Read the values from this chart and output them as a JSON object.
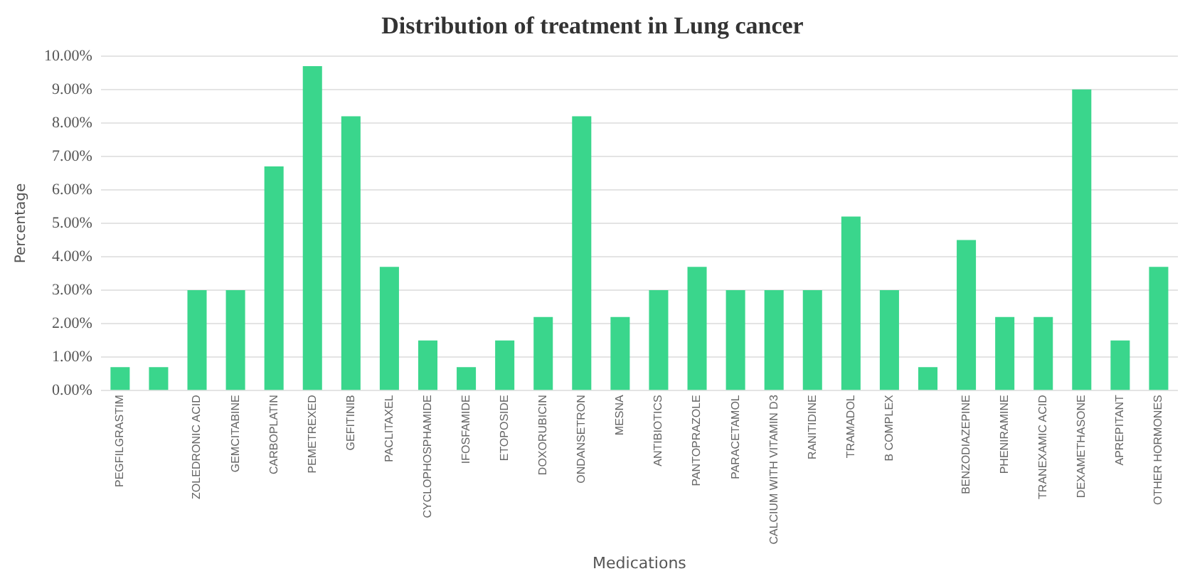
{
  "chart_data": {
    "type": "bar",
    "title": "Distribution of treatment in Lung cancer",
    "xlabel": "Medications",
    "ylabel": "Percentage",
    "categories": [
      "PEGFILGRASTIM",
      null,
      "ZOLEDRONIC ACID",
      "GEMCITABINE",
      "CARBOPLATIN",
      "PEMETREXED",
      "GEFITINIB",
      "PACLITAXEL",
      "CYCLOPHOSPHAMIDE",
      "IFOSFAMIDE",
      "ETOPOSIDE",
      "DOXORUBICIN",
      "ONDANSETRON",
      "MESNA",
      "ANTIBIOTICS",
      "PANTOPRAZOLE",
      "PARACETAMOL",
      "CALCIUM WITH VITAMIN D3",
      "RANITIDINE",
      "TRAMADOL",
      "B COMPLEX",
      null,
      "BENZODIAZEPINE",
      "PHENIRAMINE",
      "TRANEXAMIC ACID",
      "DEXAMETHASONE",
      "APREPITANT",
      "OTHER HORMONES"
    ],
    "values": [
      0.7,
      0.7,
      3.0,
      3.0,
      6.7,
      9.7,
      8.2,
      3.7,
      1.5,
      0.7,
      1.5,
      2.2,
      8.2,
      2.2,
      3.0,
      3.7,
      3.0,
      3.0,
      3.0,
      5.2,
      3.0,
      0.7,
      4.5,
      2.2,
      2.2,
      9.0,
      1.5,
      3.7
    ],
    "color": "#3ad68c",
    "ylim": [
      0,
      10
    ],
    "yticks": [
      {
        "value": 0,
        "label": "0.00%"
      },
      {
        "value": 1,
        "label": "1.00%"
      },
      {
        "value": 2,
        "label": "2.00%"
      },
      {
        "value": 3,
        "label": "3.00%"
      },
      {
        "value": 4,
        "label": "4.00%"
      },
      {
        "value": 5,
        "label": "5.00%"
      },
      {
        "value": 6,
        "label": "6.00%"
      },
      {
        "value": 7,
        "label": "7.00%"
      },
      {
        "value": 8,
        "label": "8.00%"
      },
      {
        "value": 9,
        "label": "9.00%"
      },
      {
        "value": 10,
        "label": "10.00%"
      }
    ],
    "grid": "y",
    "legend": false
  }
}
